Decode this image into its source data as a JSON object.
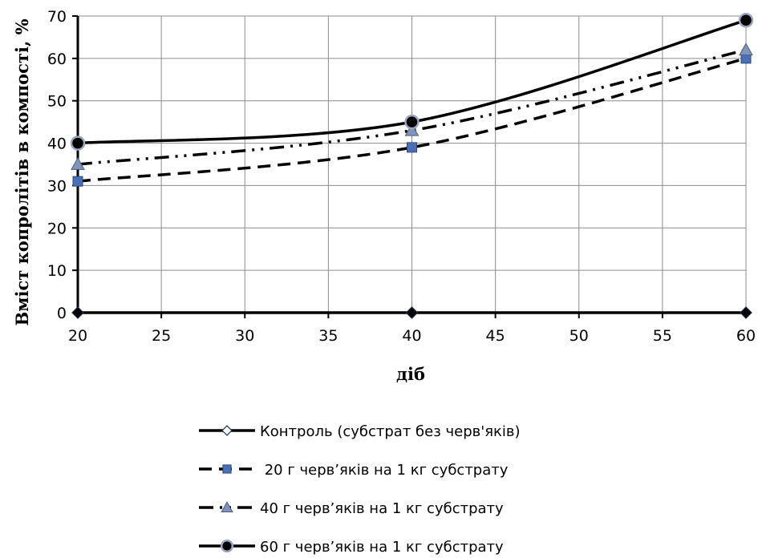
{
  "chart_data": {
    "type": "line",
    "title": "",
    "xlabel": "діб",
    "ylabel": "Вміст копролітів в компості, %",
    "xlim": [
      20,
      60
    ],
    "ylim": [
      0,
      70
    ],
    "xticks": [
      20,
      25,
      30,
      35,
      40,
      45,
      50,
      55,
      60
    ],
    "yticks": [
      0,
      10,
      20,
      30,
      40,
      50,
      60,
      70
    ],
    "grid": true,
    "legend_position": "bottom",
    "x": [
      20,
      40,
      60
    ],
    "series": [
      {
        "name": "Контроль (субстрат без черв'яків)",
        "values": [
          0,
          0,
          0
        ],
        "marker": "diamond",
        "line_style": "solid",
        "color": "#000000",
        "marker_color": "#000000",
        "legend_marker_color": "#ffffff"
      },
      {
        "name": " 20 г черв’яків на 1 кг субстрату",
        "values": [
          31,
          39,
          60
        ],
        "marker": "square",
        "line_style": "dashed",
        "color": "#000000",
        "marker_color": "#4a6fb5"
      },
      {
        "name": "40 г черв’яків на 1 кг субстрату",
        "values": [
          35,
          43,
          62
        ],
        "marker": "triangle",
        "line_style": "dash-dot-dot",
        "color": "#000000",
        "marker_color": "#7f94b8"
      },
      {
        "name": "60 г черв’яків на 1 кг субстрату",
        "values": [
          40,
          45,
          69
        ],
        "marker": "circle",
        "line_style": "solid",
        "color": "#000000",
        "marker_color": "#000000"
      }
    ]
  }
}
